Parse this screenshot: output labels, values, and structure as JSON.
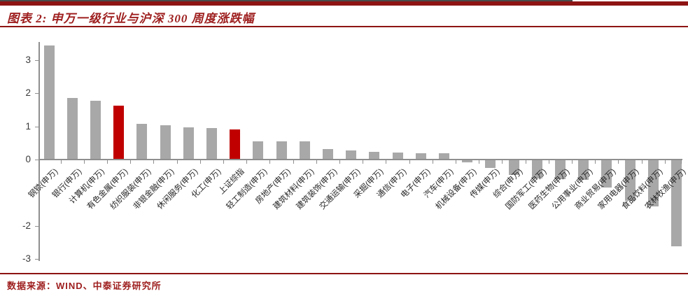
{
  "header": {
    "title": "图表 2:  申万一级行业与沪深 300  周度涨跌幅"
  },
  "footer": {
    "source": "数据来源：WIND、中泰证券研究所"
  },
  "colors": {
    "accent_dark_red": "#8e1414",
    "title_text_red": "#9e1e1e",
    "bar_gray": "#a8a8a8",
    "bar_highlight_red": "#c00000",
    "axis_gray": "#8f8f8f"
  },
  "chart_data": {
    "type": "bar",
    "title": "申万一级行业与沪深300 周度涨跌幅",
    "categories": [
      "钢铁(申万)",
      "银行(申万)",
      "计算机(申万)",
      "有色金属(申万)",
      "纺织服装(申万)",
      "非银金融(申万)",
      "休闲服务(申万)",
      "化工(申万)",
      "上证综指",
      "轻工制造(申万)",
      "房地产(申万)",
      "建筑材料(申万)",
      "建筑装饰(申万)",
      "交通运输(申万)",
      "采掘(申万)",
      "通信(申万)",
      "电子(申万)",
      "汽车(申万)",
      "机械设备(申万)",
      "传媒(申万)",
      "综合(申万)",
      "国防军工(申万)",
      "医药生物(申万)",
      "公用事业(申万)",
      "商业贸易(申万)",
      "家用电器(申万)",
      "食品饮料(申万)",
      "农林牧渔(申万)"
    ],
    "values": [
      3.45,
      1.85,
      1.77,
      1.63,
      1.08,
      1.04,
      0.98,
      0.95,
      0.9,
      0.56,
      0.54,
      0.54,
      0.32,
      0.27,
      0.23,
      0.22,
      0.2,
      0.19,
      -0.08,
      -0.25,
      -0.46,
      -0.57,
      -0.59,
      -0.61,
      -0.85,
      -1.25,
      -1.42,
      -2.62
    ],
    "highlight_indices": [
      3,
      8
    ],
    "bar_color": "#a8a8a8",
    "highlight_color": "#c00000",
    "ylim": [
      -3,
      3.5
    ],
    "yticks_labeled": [
      3,
      2,
      1,
      0,
      -2,
      -3
    ],
    "yticks_marks": [
      3,
      2,
      1,
      0,
      -1,
      -2,
      -3
    ],
    "grid": false,
    "legend": "none",
    "x_tick_label_rotation_deg": 45
  }
}
